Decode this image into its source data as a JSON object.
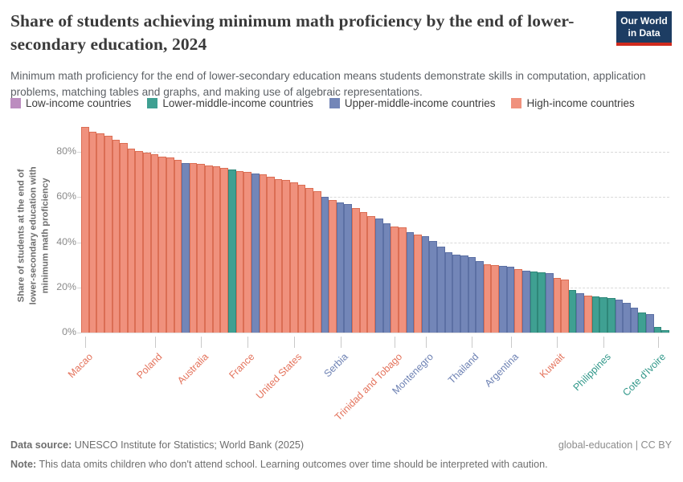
{
  "header": {
    "title": "Share of students achieving minimum math proficiency by the end of lower-secondary education, 2024",
    "subtitle": "Minimum math proficiency for the end of lower-secondary education means students demonstrate skills in computation, application problems, matching tables and graphs, and making use of algebraic representations.",
    "logo": {
      "line1": "Our World",
      "line2": "in Data",
      "bg_color": "#1d3d63",
      "accent_color": "#d02b1e"
    }
  },
  "legend": {
    "items": [
      {
        "key": "low",
        "label": "Low-income countries",
        "color": "#BC8DBF"
      },
      {
        "key": "lower_middle",
        "label": "Lower-middle-income countries",
        "color": "#3FA092"
      },
      {
        "key": "upper_middle",
        "label": "Upper-middle-income countries",
        "color": "#7386B8"
      },
      {
        "key": "high",
        "label": "High-income countries",
        "color": "#F0917D"
      }
    ]
  },
  "chart_data": {
    "type": "bar",
    "title": "Share of students achieving minimum math proficiency by the end of lower-secondary education, 2024",
    "ylabel": "Share of students at the end of lower-secondary education with minimum math proficiency",
    "ylabel_lines": [
      "Share of students at the end of",
      "lower-secondary education with",
      "minimum math proficiency"
    ],
    "xlabel": "",
    "ylim": [
      0,
      92
    ],
    "grid": true,
    "legend_position": "top",
    "y_ticks": [
      {
        "value": 0,
        "label": "0%"
      },
      {
        "value": 20,
        "label": "20%"
      },
      {
        "value": 40,
        "label": "40%"
      },
      {
        "value": 60,
        "label": "60%"
      },
      {
        "value": 80,
        "label": "80%"
      }
    ],
    "group_styles": {
      "high": {
        "fill": "#F0917D",
        "stroke": "#DB6E54",
        "text": "#E4735C"
      },
      "upper_middle": {
        "fill": "#7386B8",
        "stroke": "#5C70A4",
        "text": "#6D81B3"
      },
      "lower_middle": {
        "fill": "#3FA092",
        "stroke": "#2F8779",
        "text": "#31988A"
      },
      "low": {
        "fill": "#BC8DBF",
        "stroke": "#A673A9",
        "text": "#A873AB"
      }
    },
    "bars": [
      {
        "value": 91,
        "group": "high"
      },
      {
        "value": 89,
        "group": "high"
      },
      {
        "value": 88,
        "group": "high"
      },
      {
        "value": 87,
        "group": "high"
      },
      {
        "value": 85.5,
        "group": "high"
      },
      {
        "value": 84,
        "group": "high"
      },
      {
        "value": 81.5,
        "group": "high"
      },
      {
        "value": 80.5,
        "group": "high"
      },
      {
        "value": 79.5,
        "group": "high"
      },
      {
        "value": 79,
        "group": "high"
      },
      {
        "value": 78,
        "group": "high"
      },
      {
        "value": 77.5,
        "group": "high"
      },
      {
        "value": 76.5,
        "group": "high"
      },
      {
        "value": 75,
        "group": "upper_middle"
      },
      {
        "value": 75,
        "group": "high"
      },
      {
        "value": 74.5,
        "group": "high"
      },
      {
        "value": 74,
        "group": "high"
      },
      {
        "value": 73.5,
        "group": "high"
      },
      {
        "value": 73,
        "group": "high"
      },
      {
        "value": 72,
        "group": "lower_middle"
      },
      {
        "value": 71.5,
        "group": "high"
      },
      {
        "value": 71,
        "group": "high"
      },
      {
        "value": 70.5,
        "group": "upper_middle"
      },
      {
        "value": 70,
        "group": "high"
      },
      {
        "value": 69,
        "group": "high"
      },
      {
        "value": 68,
        "group": "high"
      },
      {
        "value": 67.5,
        "group": "high"
      },
      {
        "value": 66.5,
        "group": "high"
      },
      {
        "value": 65.5,
        "group": "high"
      },
      {
        "value": 64,
        "group": "high"
      },
      {
        "value": 62.5,
        "group": "high"
      },
      {
        "value": 60,
        "group": "upper_middle"
      },
      {
        "value": 58.5,
        "group": "high"
      },
      {
        "value": 57.5,
        "group": "upper_middle"
      },
      {
        "value": 57,
        "group": "upper_middle"
      },
      {
        "value": 55,
        "group": "high"
      },
      {
        "value": 53.5,
        "group": "high"
      },
      {
        "value": 51.5,
        "group": "high"
      },
      {
        "value": 50.5,
        "group": "upper_middle"
      },
      {
        "value": 48.5,
        "group": "upper_middle"
      },
      {
        "value": 47,
        "group": "high"
      },
      {
        "value": 46.5,
        "group": "high"
      },
      {
        "value": 44.5,
        "group": "upper_middle"
      },
      {
        "value": 43.5,
        "group": "high"
      },
      {
        "value": 42.5,
        "group": "upper_middle"
      },
      {
        "value": 40.5,
        "group": "upper_middle"
      },
      {
        "value": 38,
        "group": "upper_middle"
      },
      {
        "value": 35.5,
        "group": "upper_middle"
      },
      {
        "value": 34.5,
        "group": "upper_middle"
      },
      {
        "value": 34,
        "group": "upper_middle"
      },
      {
        "value": 33.5,
        "group": "upper_middle"
      },
      {
        "value": 31.5,
        "group": "upper_middle"
      },
      {
        "value": 30.2,
        "group": "high"
      },
      {
        "value": 29.8,
        "group": "high"
      },
      {
        "value": 29.4,
        "group": "upper_middle"
      },
      {
        "value": 29,
        "group": "upper_middle"
      },
      {
        "value": 28.2,
        "group": "high"
      },
      {
        "value": 27.3,
        "group": "upper_middle"
      },
      {
        "value": 27,
        "group": "lower_middle"
      },
      {
        "value": 26.8,
        "group": "lower_middle"
      },
      {
        "value": 26.4,
        "group": "upper_middle"
      },
      {
        "value": 24,
        "group": "high"
      },
      {
        "value": 23.3,
        "group": "high"
      },
      {
        "value": 19,
        "group": "lower_middle"
      },
      {
        "value": 17.5,
        "group": "upper_middle"
      },
      {
        "value": 16.5,
        "group": "high"
      },
      {
        "value": 16,
        "group": "lower_middle"
      },
      {
        "value": 15.8,
        "group": "lower_middle"
      },
      {
        "value": 15.4,
        "group": "lower_middle"
      },
      {
        "value": 14.5,
        "group": "upper_middle"
      },
      {
        "value": 13,
        "group": "upper_middle"
      },
      {
        "value": 11,
        "group": "upper_middle"
      },
      {
        "value": 9,
        "group": "lower_middle"
      },
      {
        "value": 8,
        "group": "upper_middle"
      },
      {
        "value": 2.5,
        "group": "lower_middle"
      },
      {
        "value": 1,
        "group": "lower_middle"
      }
    ],
    "x_tick_labels": [
      {
        "bar_index": 0,
        "label": "Macao",
        "group": "high"
      },
      {
        "bar_index": 9,
        "label": "Poland",
        "group": "high"
      },
      {
        "bar_index": 15,
        "label": "Australia",
        "group": "high"
      },
      {
        "bar_index": 21,
        "label": "France",
        "group": "high"
      },
      {
        "bar_index": 27,
        "label": "United States",
        "group": "high"
      },
      {
        "bar_index": 33,
        "label": "Serbia",
        "group": "upper_middle"
      },
      {
        "bar_index": 40,
        "label": "Trinidad and Tobago",
        "group": "high"
      },
      {
        "bar_index": 44,
        "label": "Montenegro",
        "group": "upper_middle"
      },
      {
        "bar_index": 50,
        "label": "Thailand",
        "group": "upper_middle"
      },
      {
        "bar_index": 55,
        "label": "Argentina",
        "group": "upper_middle"
      },
      {
        "bar_index": 61,
        "label": "Kuwait",
        "group": "high"
      },
      {
        "bar_index": 67,
        "label": "Philippines",
        "group": "lower_middle"
      },
      {
        "bar_index": 74,
        "label": "Cote d'Ivoire",
        "group": "lower_middle"
      }
    ]
  },
  "footer": {
    "source_label": "Data source:",
    "source_text": " UNESCO Institute for Statistics; World Bank (2025)",
    "rights_text": "global-education | CC BY",
    "note_label": "Note:",
    "note_text": " This data omits children who don't attend school. Learning outcomes over time should be interpreted with caution."
  }
}
